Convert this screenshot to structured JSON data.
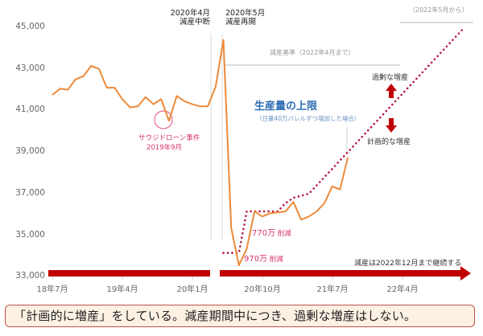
{
  "chart_data": {
    "type": "line",
    "title": "",
    "xlabel": "",
    "ylabel": "",
    "ylim": [
      33000,
      45000
    ],
    "yticks": [
      "45,000",
      "43,000",
      "41,000",
      "39,000",
      "37,000",
      "35,000",
      "33,000"
    ],
    "xticks": [
      "18年7月",
      "19年4月",
      "20年1月",
      "20年10月",
      "21年7月",
      "22年4月"
    ],
    "grid": false,
    "series": [
      {
        "name": "生産量",
        "color": "#ed8a3a",
        "style": "solid",
        "x": [
          "2018-07",
          "2018-08",
          "2018-09",
          "2018-10",
          "2018-11",
          "2018-12",
          "2019-01",
          "2019-02",
          "2019-03",
          "2019-04",
          "2019-05",
          "2019-06",
          "2019-07",
          "2019-08",
          "2019-09",
          "2019-10",
          "2019-11",
          "2019-12",
          "2020-01",
          "2020-02",
          "2020-03",
          "2020-04",
          "2020-05",
          "2020-06",
          "2020-07",
          "2020-08",
          "2020-09",
          "2020-10",
          "2020-11",
          "2020-12",
          "2021-01",
          "2021-02",
          "2021-03",
          "2021-04",
          "2021-05",
          "2021-06",
          "2021-07",
          "2021-08",
          "2021-09"
        ],
        "values": [
          41700,
          42000,
          41950,
          42450,
          42600,
          43100,
          42950,
          42050,
          42050,
          41500,
          41100,
          41150,
          41600,
          41250,
          41500,
          40450,
          41650,
          41400,
          41250,
          41150,
          41150,
          42100,
          44350,
          35300,
          33500,
          34300,
          36100,
          35850,
          36000,
          36050,
          36100,
          36550,
          35700,
          35850,
          36100,
          36500,
          37300,
          37150,
          38700
        ]
      },
      {
        "name": "生産量の上限（日量40万バレルずつ増加した場合）",
        "color": "#b8123e",
        "style": "dotted",
        "x": [
          "2020-05",
          "2020-06",
          "2020-07",
          "2020-08",
          "2020-09",
          "2020-10",
          "2020-11",
          "2020-12",
          "2021-01",
          "2021-02",
          "2021-03",
          "2021-04",
          "2021-05",
          "2021-06",
          "2021-07",
          "2021-08",
          "2021-09",
          "2021-10",
          "2021-11",
          "2021-12",
          "2022-01",
          "2022-02",
          "2022-03",
          "2022-04",
          "2022-05",
          "2022-06",
          "2022-07",
          "2022-08",
          "2022-09",
          "2022-10",
          "2022-11",
          "2022-12"
        ],
        "values": [
          34100,
          34100,
          34100,
          36100,
          36100,
          36100,
          36100,
          36100,
          36500,
          36750,
          36850,
          36950,
          37350,
          37750,
          38150,
          38550,
          38950,
          39350,
          39750,
          40150,
          40550,
          40950,
          41350,
          41750,
          42150,
          42550,
          42950,
          43350,
          43750,
          44150,
          44550,
          44950
        ]
      }
    ],
    "annotations": [
      {
        "text": "2020年4月\n減産中断",
        "x": "2020-04"
      },
      {
        "text": "2020年5月\n減産再開",
        "x": "2020-05"
      },
      {
        "text": "サウジドローン事件\n2019年9月",
        "x": "2019-09"
      },
      {
        "text": "減産基準（2022年4月まで）"
      },
      {
        "text": "（2022年5月から）"
      },
      {
        "text": "生産量の上限"
      },
      {
        "text": "（日量40万バレルずつ増加した場合）"
      },
      {
        "text": "過剰な増産"
      },
      {
        "text": "計画的な増産"
      },
      {
        "text": "770万 削減"
      },
      {
        "text": "970万 削減"
      },
      {
        "text": "減産は2022年12月まで継続する"
      }
    ]
  },
  "axis": {
    "y": [
      "45,000",
      "43,000",
      "41,000",
      "39,000",
      "37,000",
      "35,000",
      "33,000"
    ],
    "x": [
      "18年7月",
      "19年4月",
      "20年1月",
      "20年10月",
      "21年7月",
      "22年4月"
    ]
  },
  "labels": {
    "event_apr_line1": "2020年4月",
    "event_apr_line2": "減産中断",
    "event_may_line1": "2020年5月",
    "event_may_line2": "減産再開",
    "baseline_1": "減産基準（2022年4月まで）",
    "baseline_2": "（2022年5月から）",
    "cap_title": "生産量の上限",
    "cap_sub": "（日量40万バレルずつ増加した場合）",
    "excess": "過剰な増産",
    "planned": "計画的な増産",
    "drone_1": "サウジドローン事件",
    "drone_2": "2019年9月",
    "cut_770_num": "770万",
    "cut_770_unit": " 削減",
    "cut_970_num": "970万",
    "cut_970_unit": " 削減",
    "continue": "減産は2022年12月まで継続する"
  },
  "colors": {
    "line": "#ed8a3a",
    "cap": "#b8123e",
    "arrow": "#c00000",
    "cap_title": "#2d6db5",
    "footer_border": "#c0504d",
    "footer_bg": "#fdf1e4"
  },
  "footer": {
    "text": "「計画的に増産」をしている。減産期間中につき、過剰な増産はしない。"
  }
}
